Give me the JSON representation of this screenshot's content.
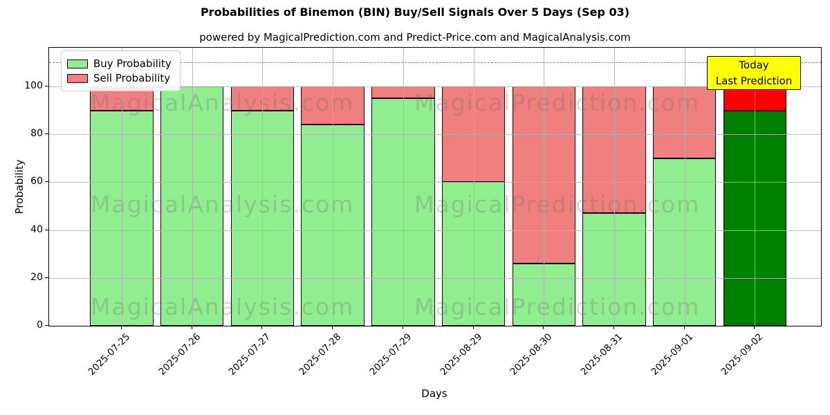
{
  "title": "Probabilities of Binemon (BIN) Buy/Sell Signals Over 5 Days (Sep 03)",
  "subtitle": "powered by MagicalPrediction.com and Predict-Price.com and MagicalAnalysis.com",
  "legend": {
    "buy_label": "Buy Probability",
    "sell_label": "Sell Probability"
  },
  "annotation": {
    "line1": "Today",
    "line2": "Last Prediction"
  },
  "axes": {
    "xlabel": "Days",
    "ylabel": "Probability",
    "yticks": [
      0,
      20,
      40,
      60,
      80,
      100
    ],
    "ylim": [
      0,
      116
    ],
    "dashed_line_y": 110,
    "grid": true
  },
  "watermarks": {
    "left_text": "MagicalAnalysis.com",
    "right_text": "MagicalPrediction.com"
  },
  "colors": {
    "buy": "#90ee90",
    "sell": "#f08080",
    "buy_today": "#008000",
    "sell_today": "#ff0000",
    "bar_edge": "#000000",
    "annotation_bg": "#ffff00",
    "dashed_line": "#7f7f7f",
    "grid": "#b0b0b0"
  },
  "chart_data": {
    "type": "bar",
    "stacked": true,
    "title": "Probabilities of Binemon (BIN) Buy/Sell Signals Over 5 Days (Sep 03)",
    "xlabel": "Days",
    "ylabel": "Probability",
    "ylim": [
      0,
      116
    ],
    "legend_position": "upper left",
    "grid": true,
    "categories": [
      "2025-07-25",
      "2025-07-26",
      "2025-07-27",
      "2025-07-28",
      "2025-07-29",
      "2025-08-29",
      "2025-08-30",
      "2025-08-31",
      "2025-09-01",
      "2025-09-02"
    ],
    "series": [
      {
        "name": "Buy Probability",
        "values": [
          90,
          100,
          90,
          84,
          95,
          60,
          26,
          47,
          70,
          90
        ]
      },
      {
        "name": "Sell Probability",
        "values": [
          10,
          0,
          10,
          16,
          5,
          40,
          74,
          53,
          30,
          10
        ]
      }
    ],
    "today_index": 9,
    "threshold_line": 110
  }
}
